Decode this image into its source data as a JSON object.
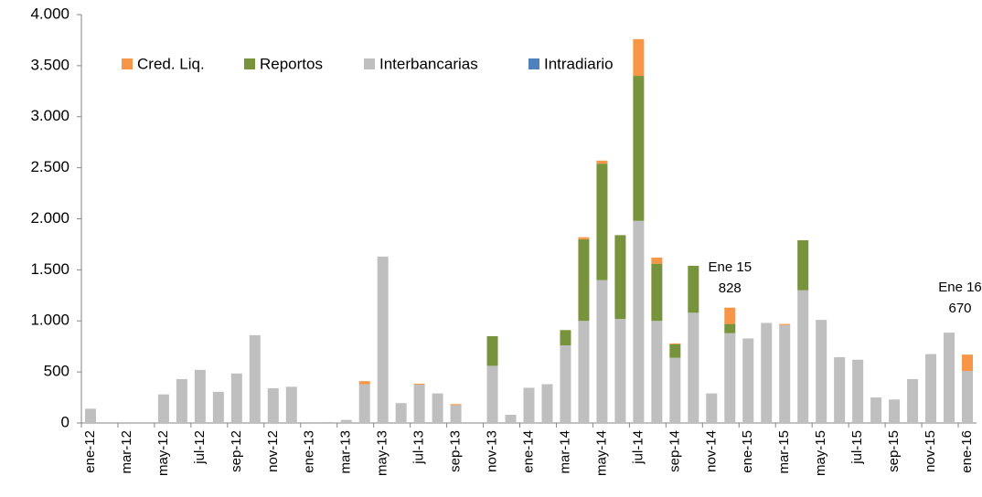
{
  "chart_data": {
    "type": "stacked_bar",
    "categories": [
      "ene-12",
      null,
      "mar-12",
      null,
      "may-12",
      null,
      "jul-12",
      null,
      "sep-12",
      null,
      "nov-12",
      null,
      "ene-13",
      null,
      "mar-13",
      null,
      "may-13",
      null,
      "jul-13",
      null,
      "sep-13",
      null,
      "nov-13",
      null,
      "ene-14",
      null,
      "mar-14",
      null,
      "may-14",
      null,
      "jul-14",
      null,
      "sep-14",
      null,
      "nov-14",
      null,
      "ene-15",
      null,
      "mar-15",
      null,
      "may-15",
      null,
      "jul-15",
      null,
      "sep-15",
      null,
      "nov-15",
      null,
      "ene-16"
    ],
    "series": [
      {
        "name": "Cred. Liq.",
        "color": "#f79646",
        "values": [
          0,
          0,
          0,
          0,
          0,
          0,
          0,
          0,
          0,
          0,
          0,
          0,
          0,
          0,
          0,
          30,
          0,
          0,
          10,
          0,
          10,
          0,
          0,
          0,
          0,
          0,
          0,
          20,
          30,
          0,
          360,
          60,
          10,
          0,
          0,
          160,
          0,
          0,
          10,
          0,
          0,
          0,
          0,
          0,
          0,
          0,
          0,
          0,
          160
        ]
      },
      {
        "name": "Reportos",
        "color": "#77933c",
        "values": [
          0,
          0,
          0,
          0,
          0,
          0,
          0,
          0,
          0,
          0,
          0,
          0,
          0,
          0,
          0,
          0,
          0,
          0,
          0,
          0,
          0,
          0,
          290,
          0,
          0,
          0,
          150,
          800,
          1140,
          820,
          1420,
          560,
          130,
          460,
          0,
          90,
          0,
          0,
          0,
          490,
          0,
          0,
          0,
          0,
          0,
          0,
          0,
          0,
          0
        ]
      },
      {
        "name": "Interbancarias",
        "color": "#bfbfbf",
        "values": [
          140,
          0,
          0,
          0,
          280,
          430,
          520,
          305,
          485,
          860,
          340,
          355,
          0,
          10,
          30,
          380,
          1630,
          195,
          375,
          290,
          175,
          0,
          560,
          80,
          345,
          380,
          760,
          1000,
          1400,
          1020,
          1980,
          1000,
          640,
          1080,
          290,
          880,
          828,
          980,
          960,
          1300,
          1010,
          645,
          620,
          250,
          230,
          430,
          675,
          885,
          510
        ]
      },
      {
        "name": "Intradiario",
        "color": "#4f81bd",
        "values": [
          0,
          0,
          0,
          0,
          0,
          0,
          0,
          0,
          0,
          0,
          0,
          0,
          0,
          0,
          0,
          0,
          0,
          0,
          0,
          0,
          0,
          0,
          0,
          0,
          0,
          0,
          0,
          0,
          0,
          0,
          0,
          0,
          0,
          0,
          0,
          0,
          0,
          0,
          0,
          0,
          0,
          0,
          0,
          0,
          0,
          0,
          0,
          0,
          0
        ]
      }
    ],
    "ylim": [
      0,
      4000
    ],
    "yticks": [
      0,
      500,
      {
        "value": 1000,
        "label": "1.000"
      },
      {
        "value": 1500,
        "label": "1.500"
      },
      {
        "value": 2000,
        "label": "2.000"
      },
      {
        "value": 2500,
        "label": "2.500"
      },
      {
        "value": 3000,
        "label": "3.000"
      },
      {
        "value": 3500,
        "label": "3.500"
      },
      {
        "value": 4000,
        "label": "4.000"
      }
    ],
    "annotations": [
      {
        "text": "Ene 15",
        "value": 828
      },
      {
        "text": "Ene 16",
        "value": 670
      }
    ],
    "grid": false
  }
}
